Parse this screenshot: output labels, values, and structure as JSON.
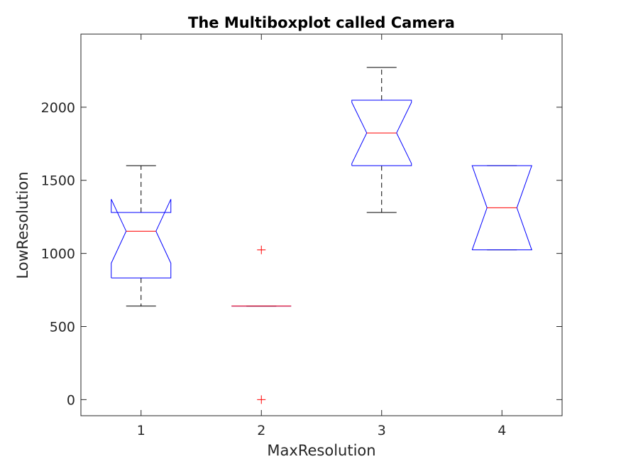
{
  "chart_data": {
    "type": "boxplot",
    "title": "The Multiboxplot called Camera",
    "xlabel": "MaxResolution",
    "ylabel": "LowResolution",
    "categories": [
      "1",
      "2",
      "3",
      "4"
    ],
    "ylim": [
      -110,
      2500
    ],
    "yticks": [
      0,
      500,
      1000,
      1500,
      2000
    ],
    "notched": true,
    "grid": false,
    "legend": "none",
    "boxes": [
      {
        "category": "1",
        "whisker_low": 640,
        "q1": 832,
        "median": 1152,
        "q3": 1280,
        "whisker_high": 1600,
        "notch_low": 933,
        "notch_high": 1371,
        "outliers": []
      },
      {
        "category": "2",
        "whisker_low": 640,
        "q1": 640,
        "median": 640,
        "q3": 640,
        "whisker_high": 640,
        "notch_low": 640,
        "notch_high": 640,
        "outliers": [
          1024,
          0
        ]
      },
      {
        "category": "3",
        "whisker_low": 1280,
        "q1": 1600,
        "median": 1824,
        "q3": 2048,
        "whisker_high": 2272,
        "notch_low": 1615,
        "notch_high": 2033,
        "outliers": []
      },
      {
        "category": "4",
        "whisker_low": 1024,
        "q1": 1024,
        "median": 1312,
        "q3": 1600,
        "whisker_high": 1600,
        "notch_low": 1024,
        "notch_high": 1600,
        "outliers": []
      }
    ],
    "colors": {
      "box": "#0000ff",
      "median": "#ff0000",
      "whisker": "#000000",
      "outlier": "#ff0000",
      "axes": "#262626"
    }
  }
}
